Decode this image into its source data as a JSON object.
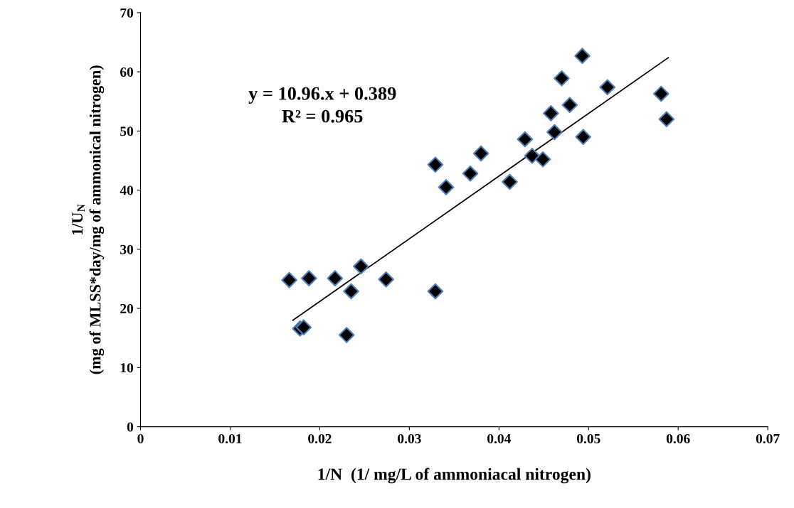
{
  "chart_data": {
    "type": "scatter",
    "xlabel": "1/N  (1/ mg/L of ammoniacal nitrogen)",
    "ylabel": "1/U$_{N}$\n(mg of MLSS*day/mg of ammonical nitrogen)",
    "xlim": [
      0,
      0.07
    ],
    "xticks": [
      0,
      0.01,
      0.02,
      0.03,
      0.04,
      0.05,
      0.06,
      0.07
    ],
    "ylim": [
      0,
      70
    ],
    "yticks": [
      0,
      10,
      20,
      30,
      40,
      50,
      60,
      70
    ],
    "grid": false,
    "legend": false,
    "annotations": [
      "y = 10.96.x + 0.389",
      "R² = 0.965"
    ],
    "series": [
      {
        "marker": "diamond",
        "color": "#000000",
        "x": [
          0.0166,
          0.0178,
          0.0182,
          0.0188,
          0.0217,
          0.0235,
          0.023,
          0.0246,
          0.0274,
          0.0329,
          0.0329,
          0.0341,
          0.038,
          0.0368,
          0.0412,
          0.0429,
          0.0437,
          0.0449,
          0.0458,
          0.0462,
          0.047,
          0.0479,
          0.0493,
          0.0494,
          0.0521,
          0.0587,
          0.0581
        ],
        "values": [
          24.8,
          16.6,
          16.8,
          25.1,
          25.1,
          22.9,
          15.5,
          27.1,
          24.9,
          22.9,
          44.3,
          40.5,
          46.2,
          42.8,
          41.4,
          48.6,
          45.8,
          45.2,
          53.0,
          49.8,
          58.9,
          54.4,
          62.7,
          49.0,
          57.4,
          52.0,
          56.3
        ]
      },
      {
        "type": "line",
        "marker": "none",
        "color": "#000000",
        "x": [
          0.017,
          0.0589
        ],
        "values": [
          18.0,
          62.4
        ]
      }
    ]
  }
}
